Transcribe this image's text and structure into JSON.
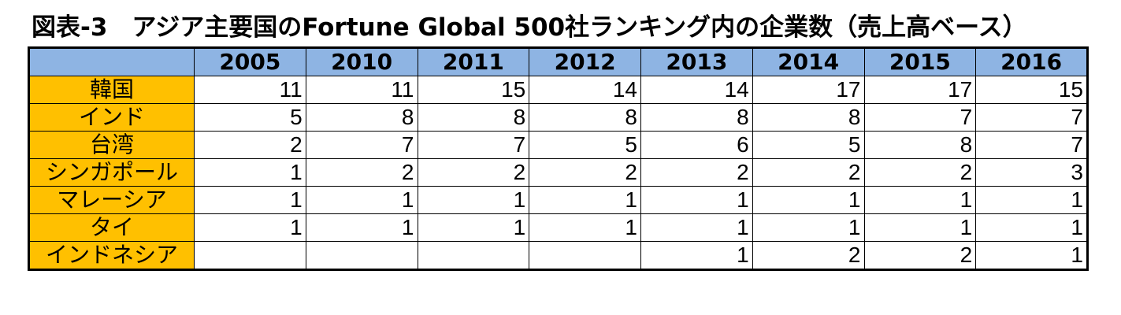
{
  "title": "図表-3　アジア主要国のFortune Global 500社ランキング内の企業数（売上高ベース）",
  "chart_data": {
    "type": "table",
    "title": "図表-3　アジア主要国のFortune Global 500社ランキング内の企業数（売上高ベース）",
    "columns": [
      "2005",
      "2010",
      "2011",
      "2012",
      "2013",
      "2014",
      "2015",
      "2016"
    ],
    "rows": [
      {
        "label": "韓国",
        "values": [
          "11",
          "11",
          "15",
          "14",
          "14",
          "17",
          "17",
          "15"
        ]
      },
      {
        "label": "インド",
        "values": [
          "5",
          "8",
          "8",
          "8",
          "8",
          "8",
          "7",
          "7"
        ]
      },
      {
        "label": "台湾",
        "values": [
          "2",
          "7",
          "7",
          "5",
          "6",
          "5",
          "8",
          "7"
        ]
      },
      {
        "label": "シンガポール",
        "values": [
          "1",
          "2",
          "2",
          "2",
          "2",
          "2",
          "2",
          "3"
        ]
      },
      {
        "label": "マレーシア",
        "values": [
          "1",
          "1",
          "1",
          "1",
          "1",
          "1",
          "1",
          "1"
        ]
      },
      {
        "label": "タイ",
        "values": [
          "1",
          "1",
          "1",
          "1",
          "1",
          "1",
          "1",
          "1"
        ]
      },
      {
        "label": "インドネシア",
        "values": [
          "",
          "",
          "",
          "",
          "1",
          "2",
          "2",
          "1"
        ]
      }
    ]
  },
  "colors": {
    "header_bg": "#8EB4E3",
    "rowhead_bg": "#FFC000",
    "border": "#000000"
  }
}
